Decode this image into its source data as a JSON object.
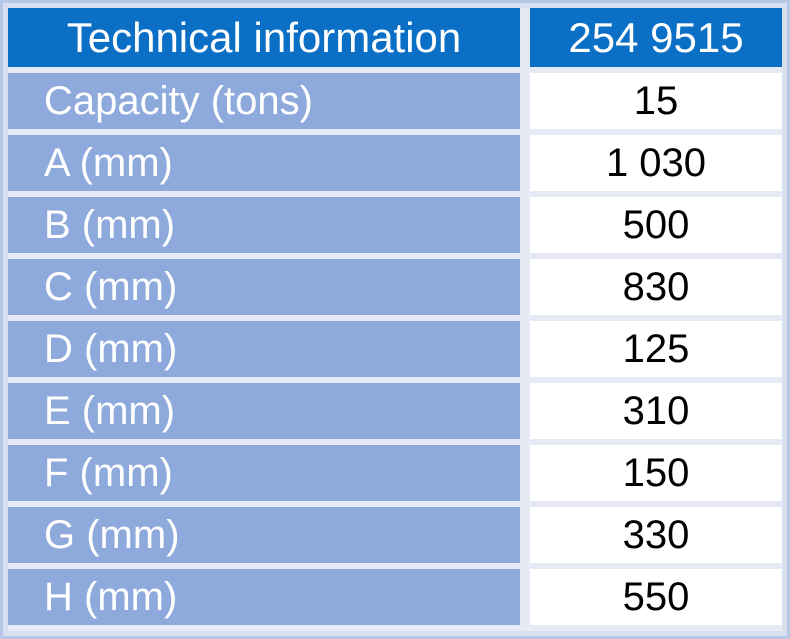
{
  "table": {
    "header": {
      "label": "Technical information",
      "code": "254 9515"
    },
    "rows": [
      {
        "label": "Capacity (tons)",
        "value": "15"
      },
      {
        "label": "A (mm)",
        "value": "1 030"
      },
      {
        "label": "B (mm)",
        "value": "500"
      },
      {
        "label": "C (mm)",
        "value": "830"
      },
      {
        "label": "D (mm)",
        "value": "125"
      },
      {
        "label": "E (mm)",
        "value": "310"
      },
      {
        "label": "F (mm)",
        "value": "150"
      },
      {
        "label": "G (mm)",
        "value": "330"
      },
      {
        "label": "H (mm)",
        "value": "550"
      }
    ]
  },
  "colors": {
    "header_bg": "#0b6fc6",
    "label_bg": "#8ea9dc",
    "value_bg": "#ffffff",
    "border": "#b7c7e6"
  }
}
